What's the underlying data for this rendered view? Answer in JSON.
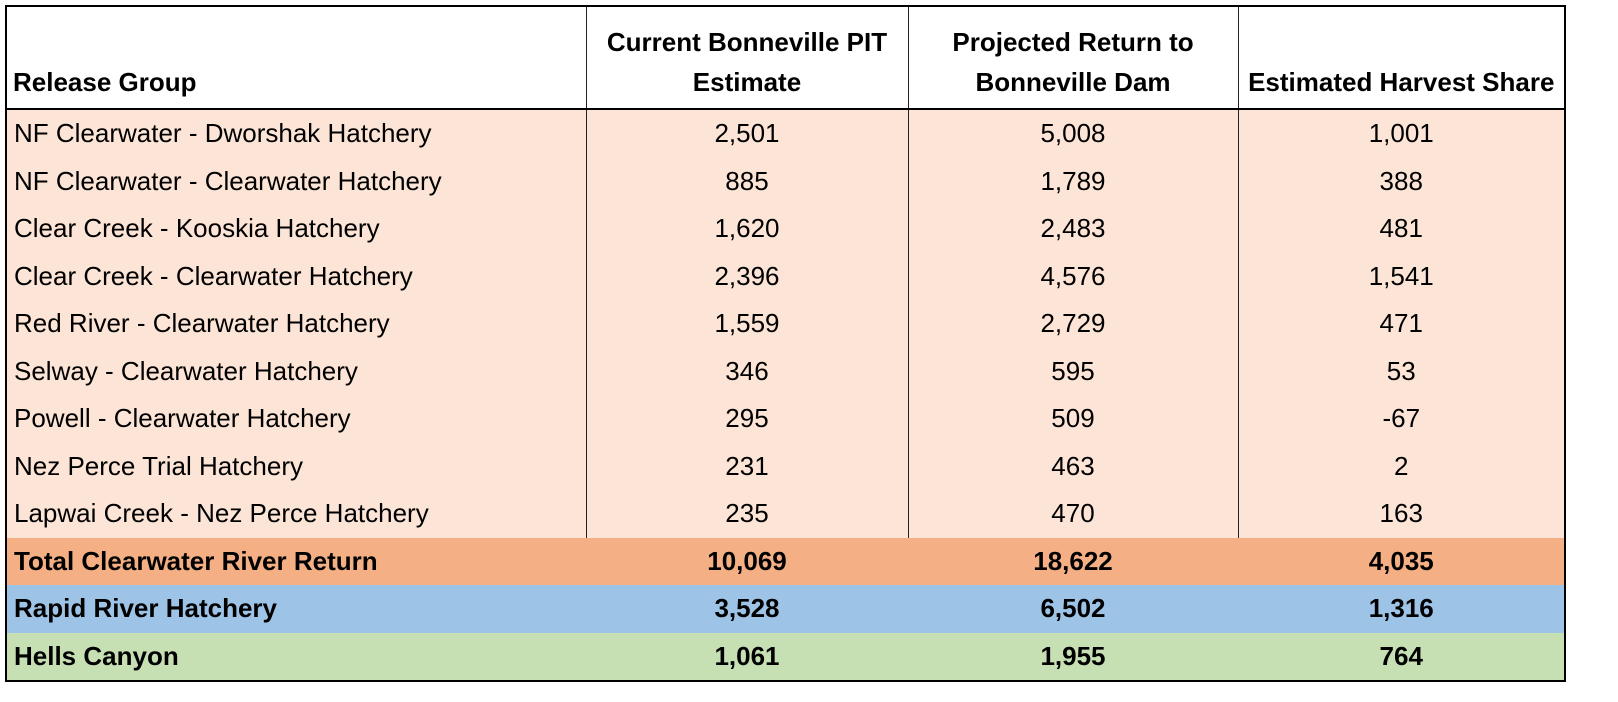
{
  "headers": [
    "Release Group",
    "Current Bonneville PIT Estimate",
    "Projected Return to Bonneville Dam",
    "Estimated Harvest Share"
  ],
  "rows": [
    [
      "NF Clearwater - Dworshak Hatchery",
      "2,501",
      "5,008",
      "1,001"
    ],
    [
      "NF Clearwater - Clearwater Hatchery",
      "885",
      "1,789",
      "388"
    ],
    [
      "Clear Creek - Kooskia Hatchery",
      "1,620",
      "2,483",
      "481"
    ],
    [
      "Clear Creek - Clearwater Hatchery",
      "2,396",
      "4,576",
      "1,541"
    ],
    [
      "Red River - Clearwater Hatchery",
      "1,559",
      "2,729",
      "471"
    ],
    [
      "Selway - Clearwater Hatchery",
      "346",
      "595",
      "53"
    ],
    [
      "Powell - Clearwater Hatchery",
      "295",
      "509",
      "-67"
    ],
    [
      "Nez Perce Trial Hatchery",
      "231",
      "463",
      "2"
    ],
    [
      "Lapwai Creek - Nez Perce Hatchery",
      "235",
      "470",
      "163"
    ]
  ],
  "summary_rows": [
    [
      "Total Clearwater River Return",
      "10,069",
      "18,622",
      "4,035"
    ],
    [
      "Rapid River Hatchery",
      "3,528",
      "6,502",
      "1,316"
    ],
    [
      "Hells Canyon",
      "1,061",
      "1,955",
      "764"
    ]
  ],
  "colors": {
    "data": "#FCE4D6",
    "total": "#F4B084",
    "rapid": "#9DC3E6",
    "hells": "#C6E0B4"
  }
}
